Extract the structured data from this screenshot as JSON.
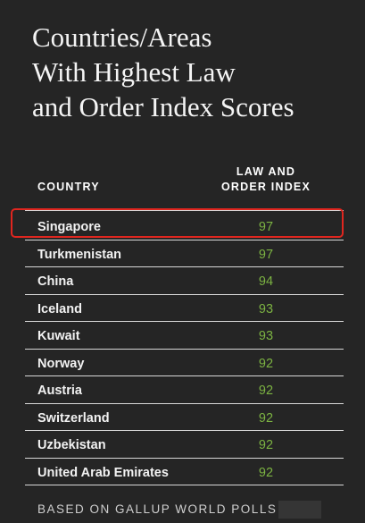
{
  "title": {
    "line1": "Countries/Areas",
    "line2": "With Highest Law",
    "line3": "and Order Index Scores"
  },
  "columns": {
    "country": "COUNTRY",
    "index_line1": "LAW AND",
    "index_line2": "ORDER INDEX"
  },
  "rows": [
    {
      "country": "Singapore",
      "score": "97"
    },
    {
      "country": "Turkmenistan",
      "score": "97"
    },
    {
      "country": "China",
      "score": "94"
    },
    {
      "country": "Iceland",
      "score": "93"
    },
    {
      "country": "Kuwait",
      "score": "93"
    },
    {
      "country": "Norway",
      "score": "92"
    },
    {
      "country": "Austria",
      "score": "92"
    },
    {
      "country": "Switzerland",
      "score": "92"
    },
    {
      "country": "Uzbekistan",
      "score": "92"
    },
    {
      "country": "United Arab Emirates",
      "score": "92"
    }
  ],
  "footer": "BASED ON GALLUP WORLD POLLS",
  "colors": {
    "background": "#252525",
    "score": "#7cb342",
    "highlight": "#e0261f"
  }
}
